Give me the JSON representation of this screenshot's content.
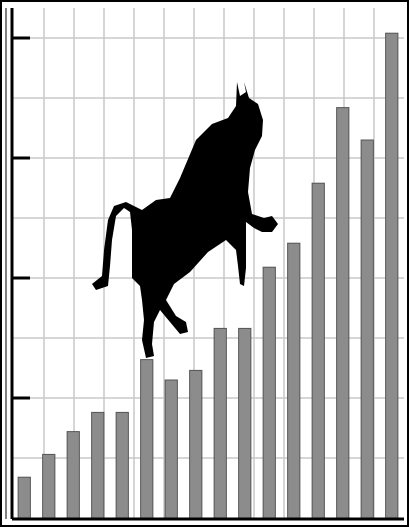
{
  "chart_data": {
    "type": "bar",
    "categories": [
      null,
      null,
      null,
      null,
      null,
      null,
      null,
      null,
      null,
      null,
      null,
      null,
      null,
      null,
      null,
      null
    ],
    "values": [
      0.34,
      0.53,
      0.72,
      0.88,
      0.88,
      1.32,
      1.15,
      1.23,
      1.58,
      1.58,
      2.09,
      2.29,
      2.79,
      3.42,
      3.15,
      4.04
    ],
    "color": "#8c8c8c",
    "ylim": [
      0,
      4.1
    ],
    "yticks": [
      0.5,
      1,
      1.5,
      2,
      2.5,
      3,
      3.5,
      4
    ],
    "grid": true
  }
}
